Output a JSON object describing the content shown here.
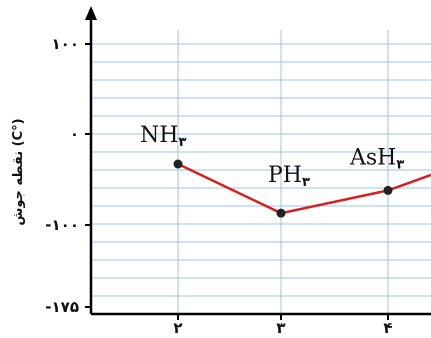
{
  "chart_data": {
    "type": "line",
    "ylabel": "نقطه جوش (C°)",
    "xlabel": "",
    "categories": [
      "۲",
      "۳",
      "۴"
    ],
    "y_ticks": [
      {
        "value": 100,
        "label": "۱۰۰"
      },
      {
        "value": 0,
        "label": "۰"
      },
      {
        "value": -100,
        "label": "-۱۰۰"
      },
      {
        "value": -175,
        "label": "-۱۷۵"
      }
    ],
    "ylim": [
      -175,
      100
    ],
    "grid": true,
    "colors": {
      "line": "#d42020",
      "grid": "#9fc4e4",
      "axis": "#000000",
      "point": "#222222"
    },
    "series": [
      {
        "points": [
          {
            "x": "۲",
            "y": -33,
            "label_main": "NH",
            "label_sub": "۳"
          },
          {
            "x": "۳",
            "y": -87,
            "label_main": "PH",
            "label_sub": "۳"
          },
          {
            "x": "۴",
            "y": -62,
            "label_main": "AsH",
            "label_sub": "۳"
          }
        ],
        "extends_right_to": -45
      }
    ]
  }
}
